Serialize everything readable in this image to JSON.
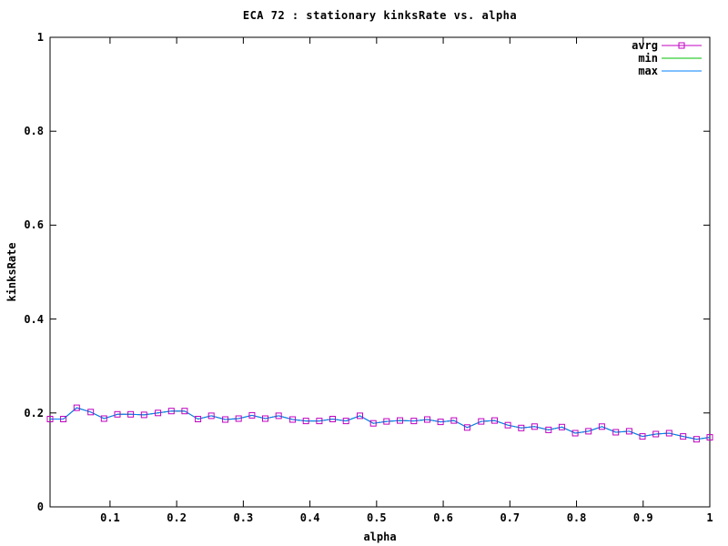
{
  "title": "ECA 72 : stationary kinksRate vs. alpha",
  "axes": {
    "x_label": "alpha",
    "y_label": "kinksRate",
    "x_tick_labels": [
      "0.1",
      "0.2",
      "0.3",
      "0.4",
      "0.5",
      "0.6",
      "0.7",
      "0.8",
      "0.9",
      "1"
    ],
    "x_tick_values": [
      0.1,
      0.2,
      0.3,
      0.4,
      0.5,
      0.6,
      0.7,
      0.8,
      0.9,
      1.0
    ],
    "y_tick_labels": [
      "0",
      "0.2",
      "0.4",
      "0.6",
      "0.8",
      "1"
    ],
    "y_tick_values": [
      0,
      0.2,
      0.4,
      0.6,
      0.8,
      1.0
    ]
  },
  "legend": {
    "position": "top-right-inside",
    "items": [
      {
        "label": "avrg",
        "color": "#C000C0",
        "marker": "open-square"
      },
      {
        "label": "min",
        "color": "#00C000",
        "marker": "none"
      },
      {
        "label": "max",
        "color": "#0080FF",
        "marker": "none"
      }
    ]
  },
  "colors": {
    "background": "#FFFFFF",
    "foreground": "#000000"
  },
  "chart_data": {
    "type": "line",
    "title": "ECA 72 : stationary kinksRate vs. alpha",
    "xlabel": "alpha",
    "ylabel": "kinksRate",
    "xlim": [
      0.01,
      1.0
    ],
    "ylim": [
      0,
      1
    ],
    "grid": false,
    "legend_position": "top-right inside, no box",
    "note": "avrg, min and max curves coincide; blue max line is drawn on top of green min and magenta avrg lines, magenta open-square markers remain visible",
    "x": [
      0.01,
      0.03,
      0.05,
      0.071,
      0.091,
      0.111,
      0.131,
      0.151,
      0.172,
      0.192,
      0.212,
      0.232,
      0.252,
      0.273,
      0.293,
      0.313,
      0.333,
      0.353,
      0.374,
      0.394,
      0.414,
      0.434,
      0.454,
      0.475,
      0.495,
      0.515,
      0.535,
      0.556,
      0.576,
      0.596,
      0.616,
      0.636,
      0.657,
      0.677,
      0.697,
      0.717,
      0.737,
      0.758,
      0.778,
      0.798,
      0.818,
      0.838,
      0.859,
      0.879,
      0.899,
      0.919,
      0.939,
      0.96,
      0.98,
      1.0
    ],
    "series": [
      {
        "name": "avrg",
        "color": "#C000C0",
        "marker": "open-square",
        "values": [
          0.187,
          0.187,
          0.211,
          0.202,
          0.188,
          0.197,
          0.197,
          0.196,
          0.2,
          0.204,
          0.204,
          0.187,
          0.194,
          0.186,
          0.188,
          0.195,
          0.188,
          0.194,
          0.186,
          0.183,
          0.183,
          0.187,
          0.183,
          0.194,
          0.178,
          0.182,
          0.184,
          0.183,
          0.186,
          0.181,
          0.184,
          0.169,
          0.182,
          0.184,
          0.174,
          0.168,
          0.171,
          0.164,
          0.17,
          0.157,
          0.161,
          0.171,
          0.159,
          0.161,
          0.15,
          0.155,
          0.157,
          0.15,
          0.144,
          0.148
        ]
      },
      {
        "name": "min",
        "color": "#00C000",
        "marker": "none",
        "values": [
          0.187,
          0.187,
          0.211,
          0.202,
          0.188,
          0.197,
          0.197,
          0.196,
          0.2,
          0.204,
          0.204,
          0.187,
          0.194,
          0.186,
          0.188,
          0.195,
          0.188,
          0.194,
          0.186,
          0.183,
          0.183,
          0.187,
          0.183,
          0.194,
          0.178,
          0.182,
          0.184,
          0.183,
          0.186,
          0.181,
          0.184,
          0.169,
          0.182,
          0.184,
          0.174,
          0.168,
          0.171,
          0.164,
          0.17,
          0.157,
          0.161,
          0.171,
          0.159,
          0.161,
          0.15,
          0.155,
          0.157,
          0.15,
          0.144,
          0.148
        ]
      },
      {
        "name": "max",
        "color": "#0080FF",
        "marker": "none",
        "values": [
          0.187,
          0.187,
          0.211,
          0.202,
          0.188,
          0.197,
          0.197,
          0.196,
          0.2,
          0.204,
          0.204,
          0.187,
          0.194,
          0.186,
          0.188,
          0.195,
          0.188,
          0.194,
          0.186,
          0.183,
          0.183,
          0.187,
          0.183,
          0.194,
          0.178,
          0.182,
          0.184,
          0.183,
          0.186,
          0.181,
          0.184,
          0.169,
          0.182,
          0.184,
          0.174,
          0.168,
          0.171,
          0.164,
          0.17,
          0.157,
          0.161,
          0.171,
          0.159,
          0.161,
          0.15,
          0.155,
          0.157,
          0.15,
          0.144,
          0.148
        ]
      }
    ]
  }
}
